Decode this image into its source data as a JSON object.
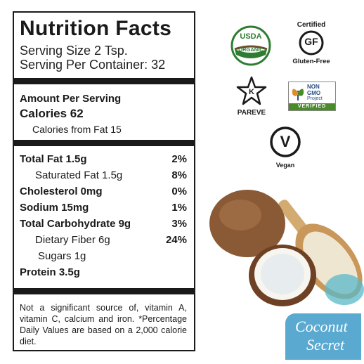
{
  "nutrition": {
    "title": "Nutrition Facts",
    "serving_size": "Serving Size 2 Tsp.",
    "servings_per_container": "Serving Per Container: 32",
    "amount_per_serving": "Amount Per Serving",
    "calories": "Calories 62",
    "calories_from_fat": "Calories from Fat 15",
    "rows": [
      {
        "name": "Total Fat 1.5g",
        "pct": "2%"
      },
      {
        "name": "Saturated Fat 1.5g",
        "pct": "8%"
      },
      {
        "name": "Cholesterol 0mg",
        "pct": "0%"
      },
      {
        "name": "Sodium 15mg",
        "pct": "1%"
      },
      {
        "name": "Total Carbohydrate 9g",
        "pct": "3%"
      },
      {
        "name": "Dietary Fiber 6g",
        "pct": "24%"
      },
      {
        "name": "Sugars 1g",
        "pct": ""
      },
      {
        "name": "Protein 3.5g",
        "pct": ""
      }
    ],
    "footnote": "Not a significant source of, vitamin A, vitamin C, calcium and iron. *Percentage Daily Values are based on a 2,000 calorie diet."
  },
  "badges": {
    "usda_top": "USDA",
    "usda_bottom": "ORGANIC",
    "gf_top": "Certified",
    "gf_mark": "GF",
    "gf_bottom": "Gluten-Free",
    "kosher_letter": "K",
    "kosher_label": "PAREVE",
    "nongmo_line1": "NON",
    "nongmo_line2": "GMO",
    "nongmo_line3": "Project",
    "nongmo_verified": "VERIFIED",
    "vegan_mark": "V",
    "vegan_label": "Vegan"
  },
  "brand": {
    "line1": "Coconut",
    "line2": "Secret"
  },
  "colors": {
    "usda_green": "#2e7d32",
    "nongmo_green": "#4a8a2a",
    "nongmo_blue": "#2a4f86",
    "brand_blue": "#5aa9d0"
  }
}
